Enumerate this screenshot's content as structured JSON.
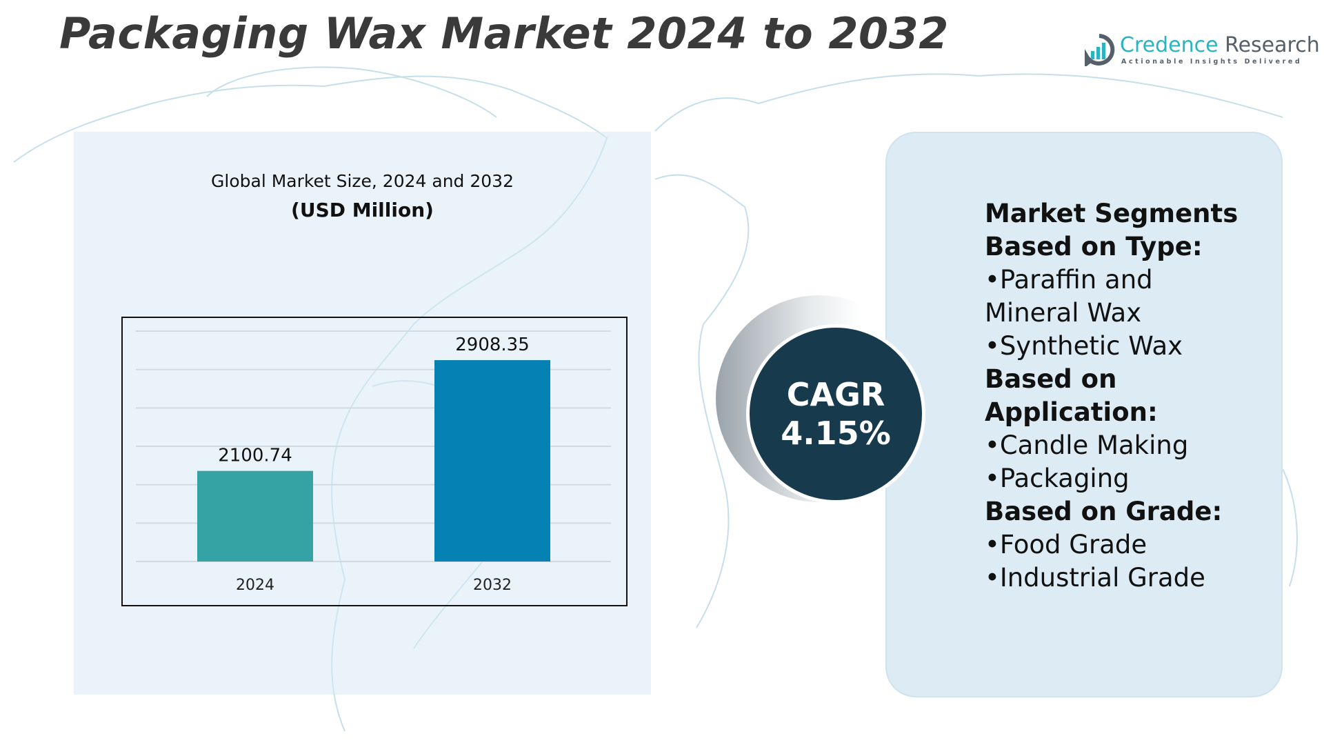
{
  "title": "Packaging Wax Market 2024 to 2032",
  "logo": {
    "name_part1": "Credence",
    "name_part2": "Research",
    "tagline": "Actionable Insights Delivered"
  },
  "chart_subtitle": "Global Market Size, 2024 and 2032",
  "chart_unit": "(USD Million)",
  "chart_data": {
    "type": "bar",
    "categories": [
      "2024",
      "2032"
    ],
    "values": [
      2100.74,
      2908.35
    ],
    "data_labels": [
      "2100.74",
      "2908.35"
    ],
    "title": "Global Market Size, 2024 and 2032",
    "ylabel": "(USD Million)",
    "xlabel": "",
    "ylim": [
      1440,
      3120
    ],
    "grid": true,
    "colors": [
      "#35a3a3",
      "#0581b3"
    ]
  },
  "cagr": {
    "label": "CAGR",
    "value": "4.15%"
  },
  "segments": {
    "heading": "Market Segments",
    "groups": [
      {
        "title": "Based on Type:",
        "items": [
          "•Paraffin and Mineral Wax",
          "•Synthetic Wax"
        ]
      },
      {
        "title": "Based on Application:",
        "items": [
          "•Candle Making",
          "•Packaging"
        ]
      },
      {
        "title": "Based on Grade:",
        "items": [
          "•Food Grade",
          "•Industrial Grade"
        ]
      }
    ]
  },
  "colors": {
    "cagr_bg": "#173a4d",
    "panel_bg": "#dcebf4",
    "map_line": "#bcd9e6"
  }
}
